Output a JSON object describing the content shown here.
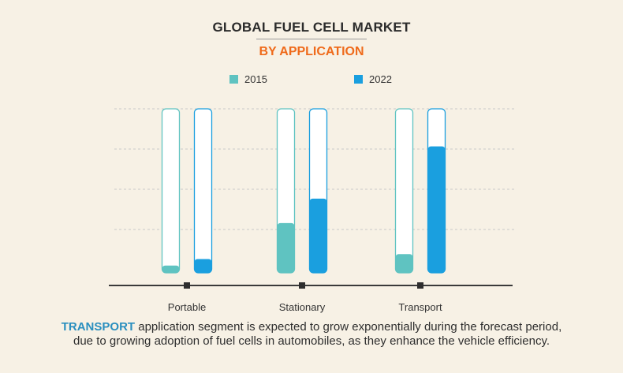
{
  "title": "GLOBAL FUEL CELL MARKET",
  "subtitle": "BY APPLICATION",
  "legend": [
    {
      "label": "2015",
      "color": "#5fc3c1"
    },
    {
      "label": "2022",
      "color": "#1a9fdf"
    }
  ],
  "chart_data": {
    "type": "bar",
    "title": "GLOBAL FUEL CELL MARKET",
    "subtitle": "BY APPLICATION",
    "categories": [
      "Portable",
      "Stationary",
      "Transport"
    ],
    "series": [
      {
        "name": "2015",
        "values": [
          4,
          30,
          11
        ],
        "color": "#5fc3c1"
      },
      {
        "name": "2022",
        "values": [
          8,
          45,
          77
        ],
        "color": "#1a9fdf"
      }
    ],
    "ylim": [
      0,
      100
    ],
    "grid": true,
    "legend_position": "top"
  },
  "caption": {
    "highlight": "TRANSPORT",
    "text": " application segment is expected to grow exponentially during the forecast period, due to growing adoption of  fuel cells in automobiles, as they enhance the vehicle efficiency."
  }
}
